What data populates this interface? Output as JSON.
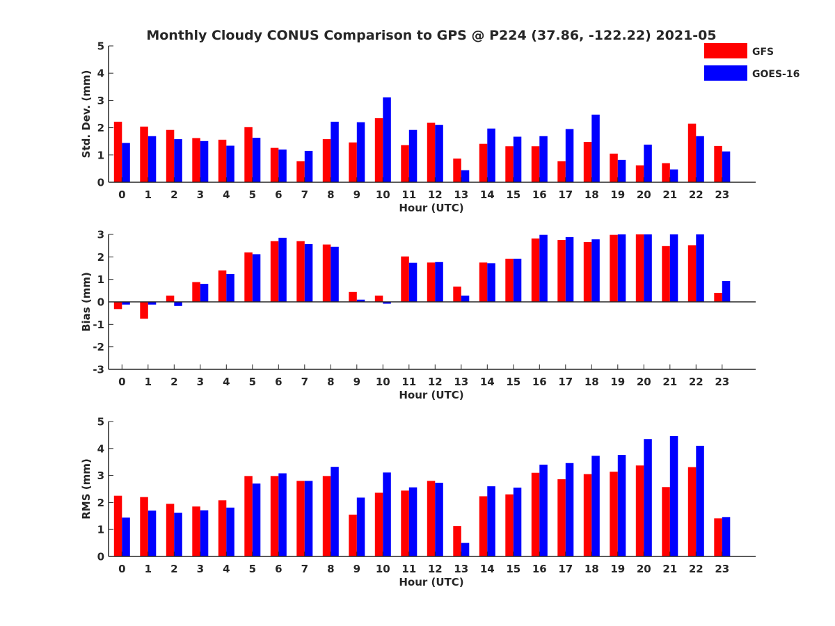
{
  "title": "Monthly Cloudy CONUS Comparison to GPS @ P224 (37.86, -122.22) 2021-05",
  "legend": {
    "placement": "top-right",
    "items": [
      {
        "label": "GFS",
        "color": "#ff0000"
      },
      {
        "label": "GOES-16",
        "color": "#0000ff"
      }
    ]
  },
  "chart_data": [
    {
      "type": "bar",
      "title": "Monthly Cloudy CONUS Comparison to GPS @ P224 (37.86, -122.22) 2021-05",
      "xlabel": "Hour (UTC)",
      "ylabel": "Std. Dev. (mm)",
      "ylim": [
        0,
        5
      ],
      "yticks": [
        0,
        1,
        2,
        3,
        4,
        5
      ],
      "categories": [
        "0",
        "1",
        "2",
        "3",
        "4",
        "5",
        "6",
        "7",
        "8",
        "9",
        "10",
        "11",
        "12",
        "13",
        "14",
        "15",
        "16",
        "17",
        "18",
        "19",
        "20",
        "21",
        "22",
        "23"
      ],
      "series": [
        {
          "name": "GFS",
          "color": "#ff0000",
          "values": [
            2.22,
            2.04,
            1.92,
            1.62,
            1.56,
            2.02,
            1.26,
            0.77,
            1.58,
            1.46,
            2.35,
            1.36,
            2.18,
            0.87,
            1.41,
            1.32,
            1.32,
            0.77,
            1.48,
            1.05,
            0.62,
            0.7,
            2.15,
            1.33
          ]
        },
        {
          "name": "GOES-16",
          "color": "#0000ff",
          "values": [
            1.44,
            1.69,
            1.58,
            1.51,
            1.34,
            1.63,
            1.2,
            1.15,
            2.22,
            2.2,
            3.11,
            1.92,
            2.1,
            0.44,
            1.97,
            1.67,
            1.69,
            1.95,
            2.48,
            0.82,
            1.38,
            0.47,
            1.69,
            1.13
          ]
        }
      ]
    },
    {
      "type": "bar",
      "xlabel": "Hour (UTC)",
      "ylabel": "Bias (mm)",
      "ylim": [
        -3,
        3
      ],
      "yticks": [
        -3,
        -2,
        -1,
        0,
        1,
        2,
        3
      ],
      "categories": [
        "0",
        "1",
        "2",
        "3",
        "4",
        "5",
        "6",
        "7",
        "8",
        "9",
        "10",
        "11",
        "12",
        "13",
        "14",
        "15",
        "16",
        "17",
        "18",
        "19",
        "20",
        "21",
        "22",
        "23"
      ],
      "series": [
        {
          "name": "GFS",
          "color": "#ff0000",
          "values": [
            -0.32,
            -0.75,
            0.28,
            0.88,
            1.4,
            2.2,
            2.7,
            2.7,
            2.55,
            0.44,
            0.28,
            2.02,
            1.75,
            0.68,
            1.75,
            1.92,
            2.82,
            2.75,
            2.66,
            2.98,
            3.0,
            2.48,
            2.52,
            0.4
          ]
        },
        {
          "name": "GOES-16",
          "color": "#0000ff",
          "values": [
            -0.12,
            -0.12,
            -0.18,
            0.8,
            1.24,
            2.12,
            2.85,
            2.57,
            2.45,
            0.1,
            -0.08,
            1.74,
            1.77,
            0.28,
            1.72,
            1.92,
            2.98,
            2.88,
            2.78,
            3.0,
            3.0,
            3.0,
            3.0,
            0.93
          ]
        }
      ]
    },
    {
      "type": "bar",
      "xlabel": "Hour (UTC)",
      "ylabel": "RMS (mm)",
      "ylim": [
        0,
        5
      ],
      "yticks": [
        0,
        1,
        2,
        3,
        4,
        5
      ],
      "categories": [
        "0",
        "1",
        "2",
        "3",
        "4",
        "5",
        "6",
        "7",
        "8",
        "9",
        "10",
        "11",
        "12",
        "13",
        "14",
        "15",
        "16",
        "17",
        "18",
        "19",
        "20",
        "21",
        "22",
        "23"
      ],
      "series": [
        {
          "name": "GFS",
          "color": "#ff0000",
          "values": [
            2.25,
            2.2,
            1.95,
            1.85,
            2.08,
            2.98,
            2.98,
            2.8,
            2.98,
            1.55,
            2.36,
            2.44,
            2.8,
            1.13,
            2.23,
            2.3,
            3.1,
            2.86,
            3.05,
            3.14,
            3.37,
            2.57,
            3.31,
            1.41
          ]
        },
        {
          "name": "GOES-16",
          "color": "#0000ff",
          "values": [
            1.44,
            1.7,
            1.62,
            1.71,
            1.81,
            2.7,
            3.08,
            2.8,
            3.32,
            2.18,
            3.11,
            2.56,
            2.73,
            0.5,
            2.6,
            2.55,
            3.4,
            3.46,
            3.73,
            3.76,
            4.35,
            4.46,
            4.1,
            1.46
          ]
        }
      ]
    }
  ]
}
